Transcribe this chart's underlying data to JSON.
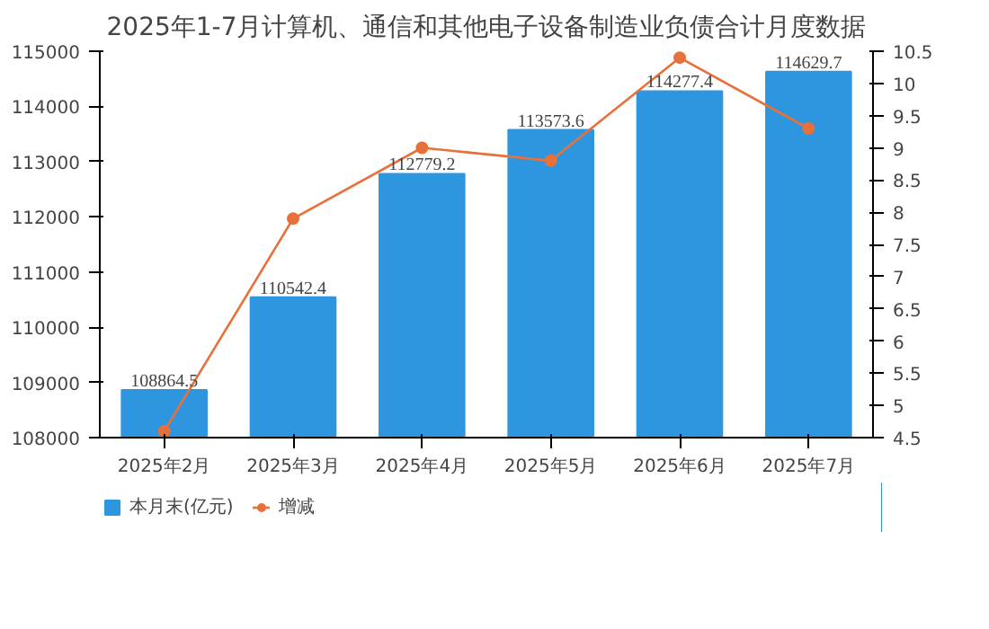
{
  "chart_data": {
    "type": "bar",
    "title": "2025年1-7月计算机、通信和其他电子设备制造业负债合计月度数据",
    "categories": [
      "2025年2月",
      "2025年3月",
      "2025年4月",
      "2025年5月",
      "2025年6月",
      "2025年7月"
    ],
    "series": [
      {
        "name": "本月末(亿元)",
        "type": "bar",
        "color": "#2e96df",
        "values": [
          108864.5,
          110542.4,
          112779.2,
          113573.6,
          114277.4,
          114629.7
        ],
        "value_labels": [
          "108864.5",
          "110542.4",
          "112779.2",
          "113573.6",
          "114277.4",
          "114629.7"
        ]
      },
      {
        "name": "增减",
        "type": "line",
        "axis": "y2",
        "color": "#e8703a",
        "values": [
          4.6,
          7.9,
          9.0,
          8.8,
          10.4,
          9.3
        ]
      }
    ],
    "ylim": [
      108000,
      115000
    ],
    "yticks": [
      108000,
      109000,
      110000,
      111000,
      112000,
      113000,
      114000,
      115000
    ],
    "y2lim": [
      4.5,
      10.5
    ],
    "y2ticks": [
      4.5,
      5,
      5.5,
      6,
      6.5,
      7,
      7.5,
      8,
      8.5,
      9,
      9.5,
      10,
      10.5
    ],
    "grid": false,
    "legend": "bottom left",
    "marker": "circle"
  }
}
